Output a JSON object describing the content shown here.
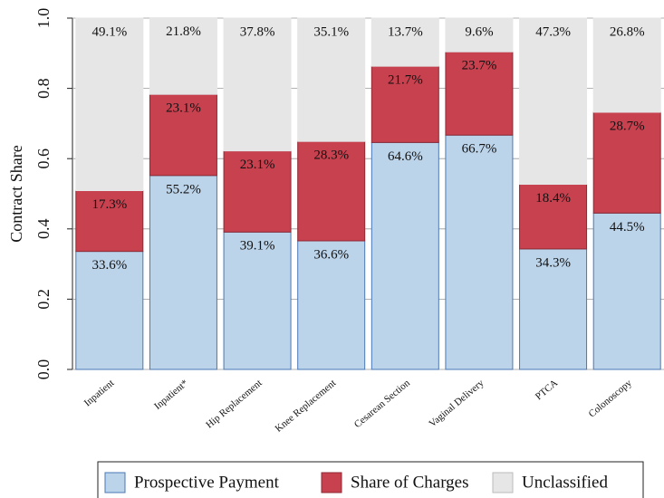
{
  "chart_data": {
    "type": "stacked_bar",
    "y_label": "Contract Share",
    "categories": [
      "Inpatient",
      "Inpatient*",
      "Hip Replacement",
      "Knee Replacement",
      "Cesarean Section",
      "Vaginal Delivery",
      "PTCA",
      "Colonoscopy"
    ],
    "series": [
      {
        "name": "Prospective Payment",
        "color": "#bcd4ea",
        "edge": "#4a78b5",
        "values": [
          0.336,
          0.552,
          0.391,
          0.366,
          0.646,
          0.667,
          0.343,
          0.445
        ],
        "value_labels": [
          "33.6%",
          "55.2%",
          "39.1%",
          "36.6%",
          "64.6%",
          "66.7%",
          "34.3%",
          "44.5%"
        ]
      },
      {
        "name": "Share of Charges",
        "color": "#c8414f",
        "edge": "#8e2a34",
        "values": [
          0.173,
          0.231,
          0.231,
          0.283,
          0.217,
          0.237,
          0.184,
          0.287
        ],
        "value_labels": [
          "17.3%",
          "23.1%",
          "23.1%",
          "28.3%",
          "21.7%",
          "23.7%",
          "18.4%",
          "28.7%"
        ]
      },
      {
        "name": "Unclassified",
        "color": "#e6e6e6",
        "edge": "#e6e6e6",
        "values": [
          0.491,
          0.218,
          0.378,
          0.351,
          0.137,
          0.096,
          0.473,
          0.268
        ],
        "value_labels": [
          "49.1%",
          "21.8%",
          "37.8%",
          "35.1%",
          "13.7%",
          "9.6%",
          "47.3%",
          "26.8%"
        ]
      }
    ],
    "ylim": [
      0,
      1
    ],
    "yticks": [
      {
        "value": 0,
        "label": "0.0"
      },
      0.2,
      0.4,
      0.6,
      0.8,
      {
        "value": 1,
        "label": "1.0"
      }
    ],
    "grid": true,
    "legend": "bottom"
  }
}
